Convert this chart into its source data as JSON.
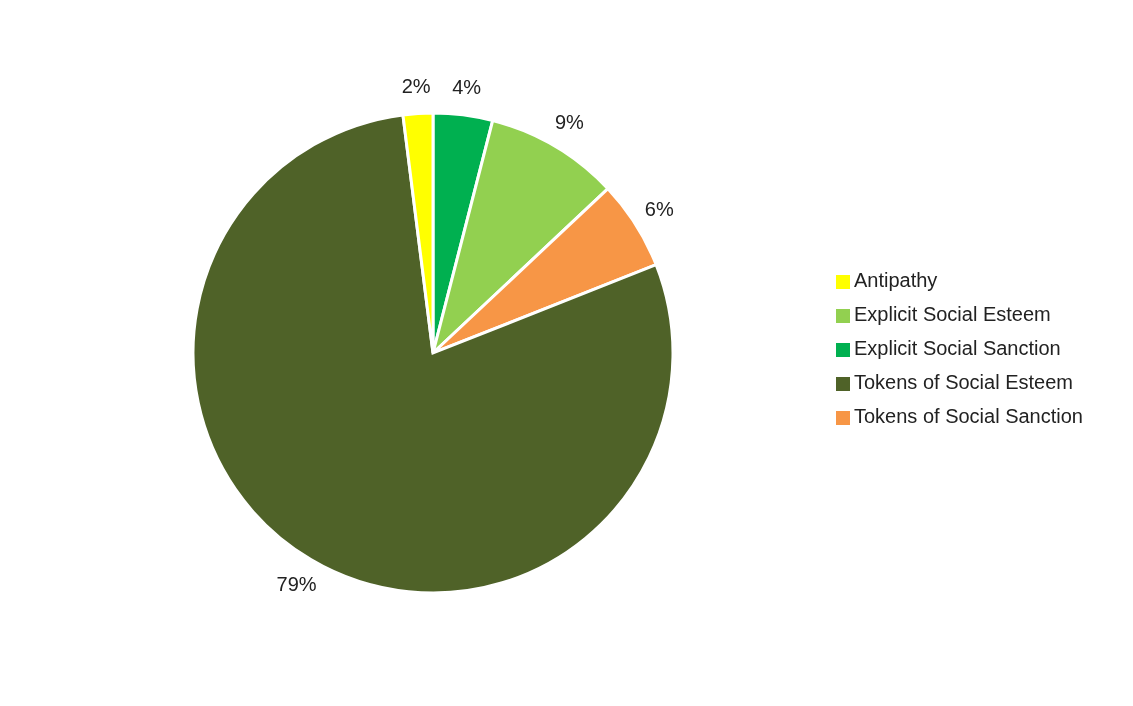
{
  "chart_data": {
    "type": "pie",
    "categories": [
      "Explicit Social Sanction",
      "Explicit Social Esteem",
      "Tokens of Social Sanction",
      "Tokens of Social Esteem",
      "Antipathy"
    ],
    "values": [
      4,
      9,
      6,
      79,
      2
    ],
    "colors": [
      "#00b050",
      "#92d050",
      "#f79646",
      "#4f6228",
      "#ffff00"
    ],
    "value_labels": [
      "4%",
      "9%",
      "6%",
      "79%",
      "2%"
    ],
    "legend": "right"
  }
}
